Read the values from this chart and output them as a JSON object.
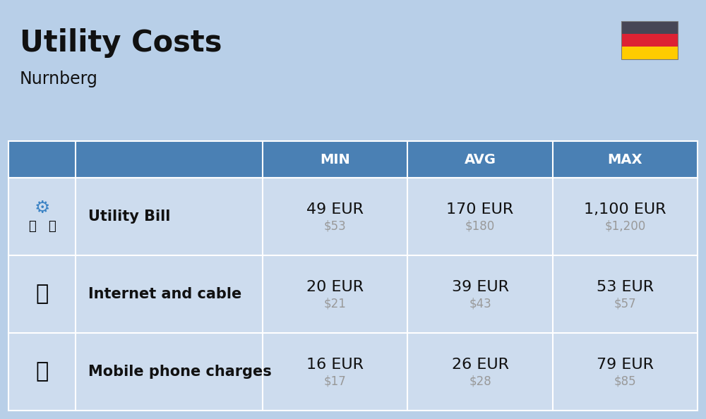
{
  "title": "Utility Costs",
  "subtitle": "Nurnberg",
  "background_color": "#b8cfe8",
  "header_color": "#4a80b4",
  "header_text_color": "#ffffff",
  "row_color": "#cddcee",
  "text_color": "#111111",
  "subtext_color": "#999999",
  "columns": [
    "MIN",
    "AVG",
    "MAX"
  ],
  "rows": [
    {
      "label": "Utility Bill",
      "icon": "utility",
      "min_eur": "49 EUR",
      "min_usd": "$53",
      "avg_eur": "170 EUR",
      "avg_usd": "$180",
      "max_eur": "1,100 EUR",
      "max_usd": "$1,200"
    },
    {
      "label": "Internet and cable",
      "icon": "internet",
      "min_eur": "20 EUR",
      "min_usd": "$21",
      "avg_eur": "39 EUR",
      "avg_usd": "$43",
      "max_eur": "53 EUR",
      "max_usd": "$57"
    },
    {
      "label": "Mobile phone charges",
      "icon": "mobile",
      "min_eur": "16 EUR",
      "min_usd": "$17",
      "avg_eur": "26 EUR",
      "avg_usd": "$28",
      "max_eur": "79 EUR",
      "max_usd": "$85"
    }
  ],
  "flag_colors": [
    "#464655",
    "#dd2233",
    "#ffcc00"
  ],
  "title_fontsize": 30,
  "subtitle_fontsize": 17,
  "header_fontsize": 14,
  "label_fontsize": 15,
  "eur_fontsize": 16,
  "usd_fontsize": 12
}
